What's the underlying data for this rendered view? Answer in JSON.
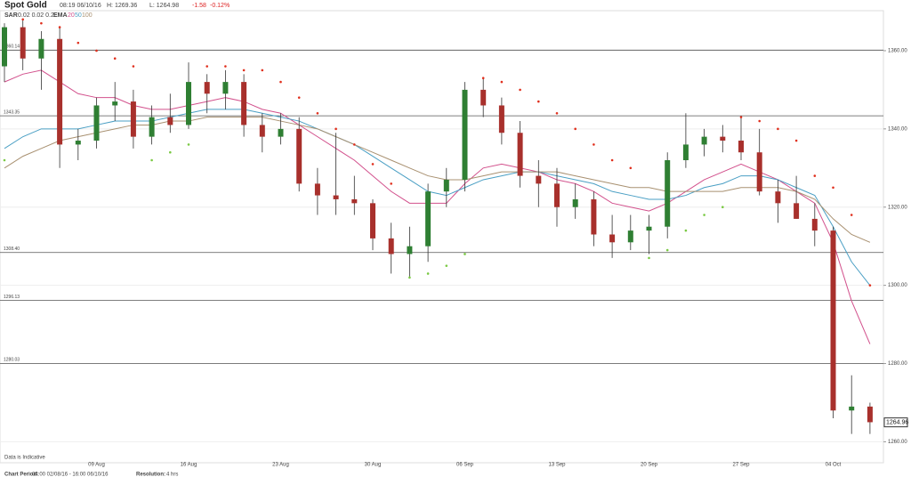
{
  "header": {
    "title": "Spot Gold",
    "time": "08:19 06/10/16",
    "high": "H: 1269.36",
    "low": "L: 1264.98",
    "change": "-1.58",
    "change_pct": "-0.12%",
    "sar_label": "SAR",
    "sar_params": "0.02 0.02 0.2",
    "ema_label": "EMA",
    "ema_params": [
      "20",
      "50",
      "100"
    ]
  },
  "footer": {
    "note": "Data is Indicative",
    "period_label": "Chart Period:",
    "period": "04:00 02/08/16 - 16:00 06/10/16",
    "resolution_label": "Resolution:",
    "resolution": "4 hrs"
  },
  "chart_data": {
    "type": "candlestick",
    "categories": [
      null,
      null,
      null,
      null,
      null,
      "09 Aug",
      null,
      null,
      null,
      null,
      "16 Aug",
      null,
      null,
      null,
      null,
      "23 Aug",
      null,
      null,
      null,
      null,
      "30 Aug",
      null,
      null,
      null,
      null,
      "06 Sep",
      null,
      null,
      null,
      null,
      "13 Sep",
      null,
      null,
      null,
      null,
      "20 Sep",
      null,
      null,
      null,
      null,
      "27 Sep",
      null,
      null,
      null,
      null,
      "04 Oct",
      null,
      null
    ],
    "open": [
      1356,
      1366,
      1358,
      1363,
      1336,
      1337,
      1346,
      1347,
      1338,
      1343,
      1341,
      1352,
      1349,
      1352,
      1341,
      1338,
      1340,
      1326,
      1323,
      1322,
      1321,
      1312,
      1308,
      1310,
      1324,
      1327,
      1350,
      1346,
      1339,
      1328,
      1326,
      1320,
      1322,
      1313,
      1311,
      1314,
      1315,
      1332,
      1336,
      1338,
      1337,
      1334,
      1324,
      1321,
      1317,
      1314,
      1268,
      1269
    ],
    "high": [
      1367,
      1368,
      1365,
      1366,
      1340,
      1348,
      1352,
      1350,
      1346,
      1349,
      1357,
      1354,
      1355,
      1354,
      1344,
      1344,
      1343,
      1330,
      1339,
      1328,
      1322,
      1316,
      1315,
      1326,
      1330,
      1352,
      1353,
      1348,
      1342,
      1332,
      1330,
      1326,
      1324,
      1318,
      1318,
      1318,
      1334,
      1344,
      1340,
      1341,
      1343,
      1340,
      1327,
      1328,
      1321,
      1315,
      1277,
      1270
    ],
    "low": [
      1352,
      1355,
      1350,
      1330,
      1332,
      1335,
      1342,
      1335,
      1336,
      1339,
      1340,
      1344,
      1345,
      1338,
      1334,
      1336,
      1324,
      1318,
      1318,
      1318,
      1309,
      1303,
      1302,
      1306,
      1320,
      1324,
      1343,
      1336,
      1325,
      1320,
      1315,
      1317,
      1310,
      1307,
      1309,
      1308,
      1312,
      1330,
      1333,
      1334,
      1332,
      1323,
      1316,
      1317,
      1310,
      1266,
      1262,
      1262
    ],
    "close": [
      1366,
      1358,
      1363,
      1336,
      1337,
      1346,
      1347,
      1338,
      1343,
      1341,
      1352,
      1349,
      1352,
      1341,
      1338,
      1340,
      1326,
      1323,
      1322,
      1321,
      1312,
      1308,
      1310,
      1324,
      1327,
      1350,
      1346,
      1339,
      1328,
      1326,
      1320,
      1322,
      1313,
      1311,
      1314,
      1315,
      1332,
      1336,
      1338,
      1337,
      1334,
      1324,
      1321,
      1317,
      1314,
      1268,
      1269,
      1265
    ],
    "up_color": "#2f7f33",
    "down_color": "#a8302c",
    "series": [
      {
        "name": "20",
        "color": "#d2508c",
        "values": [
          1352,
          1354,
          1355,
          1352,
          1349,
          1348,
          1348,
          1346,
          1345,
          1345,
          1346,
          1347,
          1348,
          1347,
          1345,
          1344,
          1341,
          1338,
          1335,
          1332,
          1328,
          1324,
          1321,
          1321,
          1321,
          1326,
          1330,
          1331,
          1330,
          1329,
          1327,
          1326,
          1324,
          1321,
          1320,
          1319,
          1321,
          1324,
          1327,
          1329,
          1331,
          1329,
          1327,
          1324,
          1321,
          1311,
          1296,
          1285
        ]
      },
      {
        "name": "50",
        "color": "#4a9fc4",
        "values": [
          1335,
          1338,
          1340,
          1340,
          1340,
          1341,
          1342,
          1342,
          1342,
          1343,
          1344,
          1345,
          1345,
          1345,
          1344,
          1343,
          1342,
          1340,
          1338,
          1336,
          1333,
          1330,
          1327,
          1324,
          1323,
          1325,
          1327,
          1328,
          1329,
          1329,
          1328,
          1327,
          1326,
          1324,
          1323,
          1322,
          1322,
          1323,
          1325,
          1326,
          1328,
          1328,
          1327,
          1325,
          1323,
          1315,
          1306,
          1300
        ]
      },
      {
        "name": "100",
        "color": "#a89070",
        "values": [
          1330,
          1333,
          1335,
          1337,
          1338,
          1339,
          1340,
          1341,
          1341,
          1342,
          1342,
          1343,
          1343,
          1343,
          1343,
          1342,
          1341,
          1340,
          1338,
          1336,
          1334,
          1332,
          1330,
          1328,
          1327,
          1327,
          1328,
          1329,
          1329,
          1329,
          1329,
          1328,
          1327,
          1326,
          1325,
          1325,
          1324,
          1324,
          1324,
          1324,
          1325,
          1325,
          1325,
          1324,
          1322,
          1317,
          1313,
          1311
        ]
      }
    ],
    "sar": [
      1332,
      1368,
      1367,
      1366,
      1362,
      1360,
      1358,
      1356,
      1332,
      1334,
      1336,
      1356,
      1356,
      1355,
      1355,
      1352,
      1348,
      1344,
      1340,
      1336,
      1331,
      1326,
      1302,
      1303,
      1305,
      1308,
      1353,
      1352,
      1350,
      1347,
      1344,
      1340,
      1336,
      1332,
      1330,
      1307,
      1309,
      1314,
      1318,
      1320,
      1343,
      1342,
      1340,
      1337,
      1328,
      1325,
      1318,
      1300
    ],
    "sar_up_color": "#7ac943",
    "sar_down_color": "#e0301e",
    "levels": [
      {
        "value": 1360.14,
        "label": "1360.14"
      },
      {
        "value": 1343.35,
        "label": "1343.35"
      },
      {
        "value": 1308.4,
        "label": "1308.40"
      },
      {
        "value": 1296.13,
        "label": "1296.13"
      },
      {
        "value": 1280.03,
        "label": "1280.03"
      }
    ],
    "last_price": {
      "value": 1264.96,
      "label": "1264.96"
    },
    "ylim": [
      1256,
      1370
    ],
    "yticks": [
      {
        "value": 1260,
        "label": "1260.00"
      },
      {
        "value": 1280,
        "label": "1280.00"
      },
      {
        "value": 1300,
        "label": "1300.00"
      },
      {
        "value": 1320,
        "label": "1320.00"
      },
      {
        "value": 1340,
        "label": "1340.00"
      },
      {
        "value": 1360,
        "label": "1360.00"
      }
    ],
    "grid": true
  }
}
